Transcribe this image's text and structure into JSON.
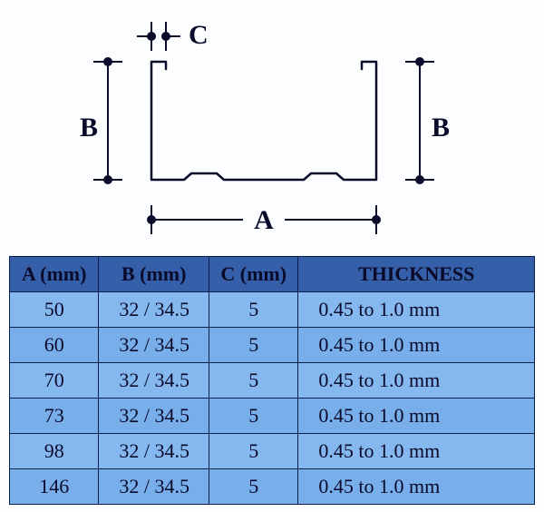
{
  "diagram": {
    "labels": {
      "A": "A",
      "B": "B",
      "C": "C"
    },
    "stroke_color": "#0a0a2a",
    "profile_stroke_width": 2.5,
    "dimension_stroke_width": 2,
    "dot_radius": 4,
    "label_fontsize": 30,
    "background_color": "#fcfdfe"
  },
  "table": {
    "header_bg": "#355fa9",
    "row_bg1": "#85b8ef",
    "row_bg2": "#78aeea",
    "border_color": "#08204a",
    "text_color": "#0a0a2a",
    "col_widths_pct": [
      17,
      21,
      17,
      45
    ],
    "columns": [
      "A (mm)",
      "B (mm)",
      "C (mm)",
      "THICKNESS"
    ],
    "rows": [
      [
        "50",
        "32 / 34.5",
        "5",
        "0.45 to 1.0 mm"
      ],
      [
        "60",
        "32 / 34.5",
        "5",
        "0.45 to 1.0 mm"
      ],
      [
        "70",
        "32 / 34.5",
        "5",
        "0.45 to 1.0 mm"
      ],
      [
        "73",
        "32 / 34.5",
        "5",
        "0.45 to 1.0 mm"
      ],
      [
        "98",
        "32 / 34.5",
        "5",
        "0.45 to 1.0 mm"
      ],
      [
        "146",
        "32 / 34.5",
        "5",
        "0.45 to 1.0 mm"
      ]
    ]
  }
}
